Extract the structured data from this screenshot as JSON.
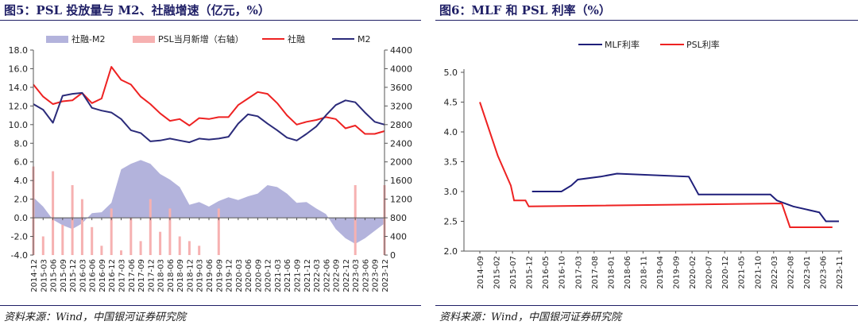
{
  "left": {
    "title": "图5：PSL 投放量与 M2、社融增速（亿元，%）",
    "source": "资料来源：Wind，中国银河证券研究院"
  },
  "right": {
    "title": "图6：MLF 和 PSL 利率（%）",
    "source": "资料来源：Wind，中国银河证券研究院"
  },
  "chart_data": [
    {
      "type": "line",
      "x_labels": [
        "2014-12",
        "2015-03",
        "2015-06",
        "2015-09",
        "2015-12",
        "2016-03",
        "2016-06",
        "2016-09",
        "2016-12",
        "2017-03",
        "2017-06",
        "2017-09",
        "2017-12",
        "2018-03",
        "2018-06",
        "2018-09",
        "2018-12",
        "2019-03",
        "2019-06",
        "2019-09",
        "2019-12",
        "2020-03",
        "2020-06",
        "2020-09",
        "2020-12",
        "2021-03",
        "2021-06",
        "2021-09",
        "2021-12",
        "2022-03",
        "2022-06",
        "2022-09",
        "2022-12",
        "2023-03",
        "2023-06",
        "2023-09",
        "2023-12"
      ],
      "ylim": [
        -4,
        18
      ],
      "y_ticks": [
        "18.0",
        "16.0",
        "14.0",
        "12.0",
        "10.0",
        "8.0",
        "6.0",
        "4.0",
        "2.0",
        "0.0",
        "-2.0",
        "-4.0"
      ],
      "y2lim": [
        0,
        4400
      ],
      "y2_ticks": [
        "4400",
        "4000",
        "3600",
        "3200",
        "2800",
        "2400",
        "2000",
        "1600",
        "1200",
        "800",
        "400",
        "0"
      ],
      "legend": "top",
      "series": [
        {
          "name": "社融-M2",
          "kind": "area",
          "axis": "left",
          "color": "#b3b3dc",
          "values": [
            2.2,
            1.2,
            -0.2,
            -0.8,
            -1.2,
            -0.6,
            0.5,
            0.6,
            1.6,
            5.2,
            5.8,
            6.2,
            5.8,
            4.7,
            4.1,
            3.3,
            1.4,
            1.7,
            1.2,
            1.8,
            2.2,
            1.9,
            2.3,
            2.6,
            3.5,
            3.3,
            2.6,
            1.6,
            1.7,
            1.0,
            0.4,
            -1.2,
            -2.2,
            -2.8,
            -2.2,
            -1.4,
            -0.6
          ]
        },
        {
          "name": "PSL当月新增（右轴）",
          "kind": "bar",
          "axis": "right",
          "color": "#f6b1b1",
          "values": [
            1900,
            400,
            1800,
            650,
            1500,
            1200,
            600,
            200,
            1000,
            100,
            800,
            300,
            1200,
            500,
            1000,
            400,
            300,
            200,
            0,
            1000,
            0,
            0,
            0,
            0,
            0,
            0,
            0,
            0,
            0,
            0,
            0,
            0,
            0,
            1500,
            0,
            0,
            1500
          ]
        },
        {
          "name": "社融",
          "kind": "line",
          "axis": "left",
          "color": "#ee2222",
          "values": [
            14.3,
            13.0,
            12.2,
            12.5,
            12.6,
            13.4,
            12.3,
            12.8,
            16.2,
            14.8,
            14.3,
            13.0,
            12.2,
            11.2,
            10.4,
            10.6,
            9.9,
            10.7,
            10.6,
            10.8,
            10.8,
            12.1,
            12.8,
            13.5,
            13.3,
            12.3,
            11.0,
            10.0,
            10.3,
            10.5,
            10.8,
            10.6,
            9.6,
            9.9,
            9.0,
            9.0,
            9.3
          ]
        },
        {
          "name": "M2",
          "kind": "line",
          "axis": "left",
          "color": "#2b2b7a",
          "values": [
            12.2,
            11.6,
            10.2,
            13.1,
            13.3,
            13.4,
            11.8,
            11.5,
            11.3,
            10.6,
            9.4,
            9.1,
            8.2,
            8.3,
            8.5,
            8.3,
            8.1,
            8.5,
            8.4,
            8.5,
            8.7,
            10.1,
            11.1,
            10.9,
            10.1,
            9.4,
            8.6,
            8.3,
            9.0,
            9.8,
            11.0,
            12.1,
            12.6,
            12.4,
            11.3,
            10.3,
            10.0
          ]
        }
      ]
    },
    {
      "type": "line",
      "x_labels": [
        "2014-09",
        "2015-02",
        "2015-07",
        "2015-12",
        "2016-05",
        "2016-10",
        "2017-03",
        "2017-08",
        "2018-01",
        "2018-06",
        "2018-11",
        "2019-04",
        "2019-09",
        "2020-02",
        "2020-07",
        "2020-12",
        "2021-05",
        "2021-10",
        "2022-03",
        "2022-08",
        "2023-01",
        "2023-06",
        "2023-11"
      ],
      "ylim": [
        2.0,
        5.0
      ],
      "y_ticks": [
        "5.0",
        "4.5",
        "4.0",
        "3.5",
        "3.0",
        "2.5",
        "2.0"
      ],
      "legend": "top",
      "series": [
        {
          "name": "MLF利率",
          "color": "#1f1f7a",
          "points": [
            [
              3.2,
              3.0
            ],
            [
              5.0,
              3.0
            ],
            [
              5.6,
              3.1
            ],
            [
              6.0,
              3.2
            ],
            [
              7.4,
              3.25
            ],
            [
              8.4,
              3.3
            ],
            [
              12.8,
              3.25
            ],
            [
              13.4,
              2.95
            ],
            [
              17.8,
              2.95
            ],
            [
              18.2,
              2.85
            ],
            [
              19.2,
              2.75
            ],
            [
              20.8,
              2.65
            ],
            [
              21.2,
              2.5
            ],
            [
              22.0,
              2.5
            ]
          ]
        },
        {
          "name": "PSL利率",
          "color": "#ee2222",
          "points": [
            [
              0.0,
              4.5
            ],
            [
              1.1,
              3.6
            ],
            [
              1.9,
              3.1
            ],
            [
              2.1,
              2.85
            ],
            [
              2.8,
              2.85
            ],
            [
              3.0,
              2.75
            ],
            [
              18.5,
              2.8
            ],
            [
              19.0,
              2.4
            ],
            [
              21.6,
              2.4
            ]
          ]
        }
      ]
    }
  ]
}
